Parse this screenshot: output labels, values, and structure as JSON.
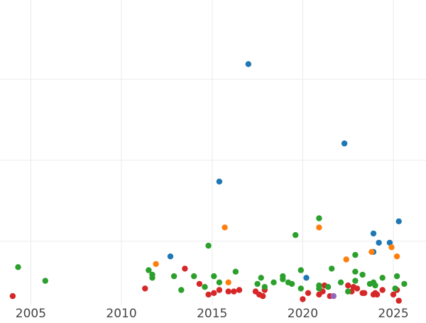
{
  "chart_data": {
    "type": "scatter",
    "title": "",
    "xlabel": "",
    "ylabel": "",
    "x_ticks": [
      "2005",
      "2010",
      "2015",
      "2020",
      "2025"
    ],
    "x_tick_values": [
      2005,
      2010,
      2015,
      2020,
      2025
    ],
    "xlim": [
      2003.3,
      2026.8
    ],
    "ylim": [
      0,
      1
    ],
    "y_gridlines": [
      0.21,
      0.475,
      0.74
    ],
    "grid": true,
    "legend": "none",
    "series": [
      {
        "color": "#d62728",
        "points": [
          [
            2004.0,
            0.03
          ],
          [
            2011.3,
            0.055
          ],
          [
            2013.5,
            0.12
          ],
          [
            2014.3,
            0.07
          ],
          [
            2014.8,
            0.035
          ],
          [
            2015.1,
            0.04
          ],
          [
            2015.4,
            0.05
          ],
          [
            2015.9,
            0.045
          ],
          [
            2016.2,
            0.045
          ],
          [
            2016.5,
            0.05
          ],
          [
            2017.4,
            0.045
          ],
          [
            2017.6,
            0.035
          ],
          [
            2017.8,
            0.03
          ],
          [
            2017.9,
            0.05
          ],
          [
            2020.0,
            0.02
          ],
          [
            2020.3,
            0.04
          ],
          [
            2020.9,
            0.035
          ],
          [
            2021.1,
            0.045
          ],
          [
            2021.2,
            0.065
          ],
          [
            2021.5,
            0.03
          ],
          [
            2022.5,
            0.065
          ],
          [
            2022.7,
            0.045
          ],
          [
            2022.8,
            0.06
          ],
          [
            2023.0,
            0.055
          ],
          [
            2023.3,
            0.04
          ],
          [
            2023.4,
            0.04
          ],
          [
            2023.9,
            0.035
          ],
          [
            2024.0,
            0.04
          ],
          [
            2024.1,
            0.035
          ],
          [
            2024.4,
            0.05
          ],
          [
            2025.0,
            0.035
          ],
          [
            2025.2,
            0.05
          ],
          [
            2025.3,
            0.015
          ]
        ]
      },
      {
        "color": "#2ca02c",
        "points": [
          [
            2004.3,
            0.125
          ],
          [
            2005.8,
            0.08
          ],
          [
            2011.5,
            0.115
          ],
          [
            2011.7,
            0.1
          ],
          [
            2011.7,
            0.09
          ],
          [
            2012.9,
            0.095
          ],
          [
            2013.3,
            0.05
          ],
          [
            2014.0,
            0.095
          ],
          [
            2014.6,
            0.06
          ],
          [
            2014.8,
            0.195
          ],
          [
            2015.1,
            0.095
          ],
          [
            2015.4,
            0.075
          ],
          [
            2016.3,
            0.11
          ],
          [
            2017.5,
            0.07
          ],
          [
            2017.7,
            0.09
          ],
          [
            2017.9,
            0.06
          ],
          [
            2018.4,
            0.075
          ],
          [
            2018.9,
            0.085
          ],
          [
            2018.9,
            0.095
          ],
          [
            2019.2,
            0.075
          ],
          [
            2019.4,
            0.07
          ],
          [
            2019.6,
            0.23
          ],
          [
            2019.9,
            0.055
          ],
          [
            2019.9,
            0.115
          ],
          [
            2020.9,
            0.055
          ],
          [
            2020.9,
            0.065
          ],
          [
            2020.9,
            0.285
          ],
          [
            2021.4,
            0.06
          ],
          [
            2021.6,
            0.12
          ],
          [
            2022.1,
            0.075
          ],
          [
            2022.5,
            0.045
          ],
          [
            2022.9,
            0.11
          ],
          [
            2022.9,
            0.08
          ],
          [
            2022.9,
            0.165
          ],
          [
            2023.3,
            0.1
          ],
          [
            2023.7,
            0.07
          ],
          [
            2023.9,
            0.075
          ],
          [
            2024.0,
            0.065
          ],
          [
            2024.4,
            0.09
          ],
          [
            2025.1,
            0.055
          ],
          [
            2025.2,
            0.095
          ],
          [
            2025.6,
            0.07
          ]
        ]
      },
      {
        "color": "#1f77b4",
        "points": [
          [
            2012.7,
            0.16
          ],
          [
            2015.4,
            0.405
          ],
          [
            2017.0,
            0.79
          ],
          [
            2020.2,
            0.09
          ],
          [
            2022.3,
            0.53
          ],
          [
            2023.9,
            0.235
          ],
          [
            2023.9,
            0.175
          ],
          [
            2024.2,
            0.205
          ],
          [
            2024.8,
            0.205
          ],
          [
            2025.3,
            0.275
          ]
        ]
      },
      {
        "color": "#ff7f0e",
        "points": [
          [
            2011.9,
            0.135
          ],
          [
            2015.7,
            0.255
          ],
          [
            2015.9,
            0.075
          ],
          [
            2020.9,
            0.255
          ],
          [
            2022.4,
            0.15
          ],
          [
            2023.8,
            0.175
          ],
          [
            2024.9,
            0.19
          ],
          [
            2025.2,
            0.16
          ]
        ]
      },
      {
        "color": "#9467bd",
        "points": [
          [
            2021.7,
            0.03
          ]
        ]
      }
    ]
  }
}
